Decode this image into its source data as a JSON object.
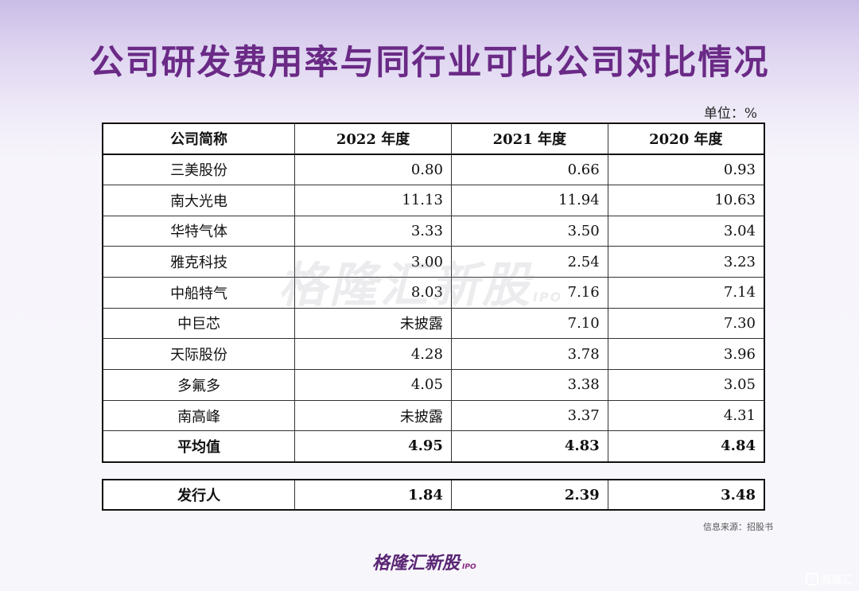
{
  "title": "公司研发费用率与同行业可比公司对比情况",
  "unit": "单位：%",
  "table": {
    "headers": [
      "公司简称",
      "2022 年度",
      "2021 年度",
      "2020 年度"
    ],
    "rows": [
      {
        "name": "三美股份",
        "y2022": "0.80",
        "y2021": "0.66",
        "y2020": "0.93"
      },
      {
        "name": "南大光电",
        "y2022": "11.13",
        "y2021": "11.94",
        "y2020": "10.63"
      },
      {
        "name": "华特气体",
        "y2022": "3.33",
        "y2021": "3.50",
        "y2020": "3.04"
      },
      {
        "name": "雅克科技",
        "y2022": "3.00",
        "y2021": "2.54",
        "y2020": "3.23"
      },
      {
        "name": "中船特气",
        "y2022": "8.03",
        "y2021": "7.16",
        "y2020": "7.14"
      },
      {
        "name": "中巨芯",
        "y2022": "未披露",
        "y2021": "7.10",
        "y2020": "7.30"
      },
      {
        "name": "天际股份",
        "y2022": "4.28",
        "y2021": "3.78",
        "y2020": "3.96"
      },
      {
        "name": "多氟多",
        "y2022": "4.05",
        "y2021": "3.38",
        "y2020": "3.05"
      },
      {
        "name": "南高峰",
        "y2022": "未披露",
        "y2021": "3.37",
        "y2020": "4.31"
      }
    ],
    "average": {
      "name": "平均值",
      "y2022": "4.95",
      "y2021": "4.83",
      "y2020": "4.84"
    }
  },
  "issuer": {
    "name": "发行人",
    "y2022": "1.84",
    "y2021": "2.39",
    "y2020": "3.48"
  },
  "source": "信息来源：招股书",
  "watermark": {
    "text": "格隆汇新股",
    "suffix": "IPO"
  },
  "brand": {
    "text": "格隆汇新股",
    "suffix": "IPO"
  },
  "corner": {
    "icon": "G",
    "text": "格隆汇"
  }
}
